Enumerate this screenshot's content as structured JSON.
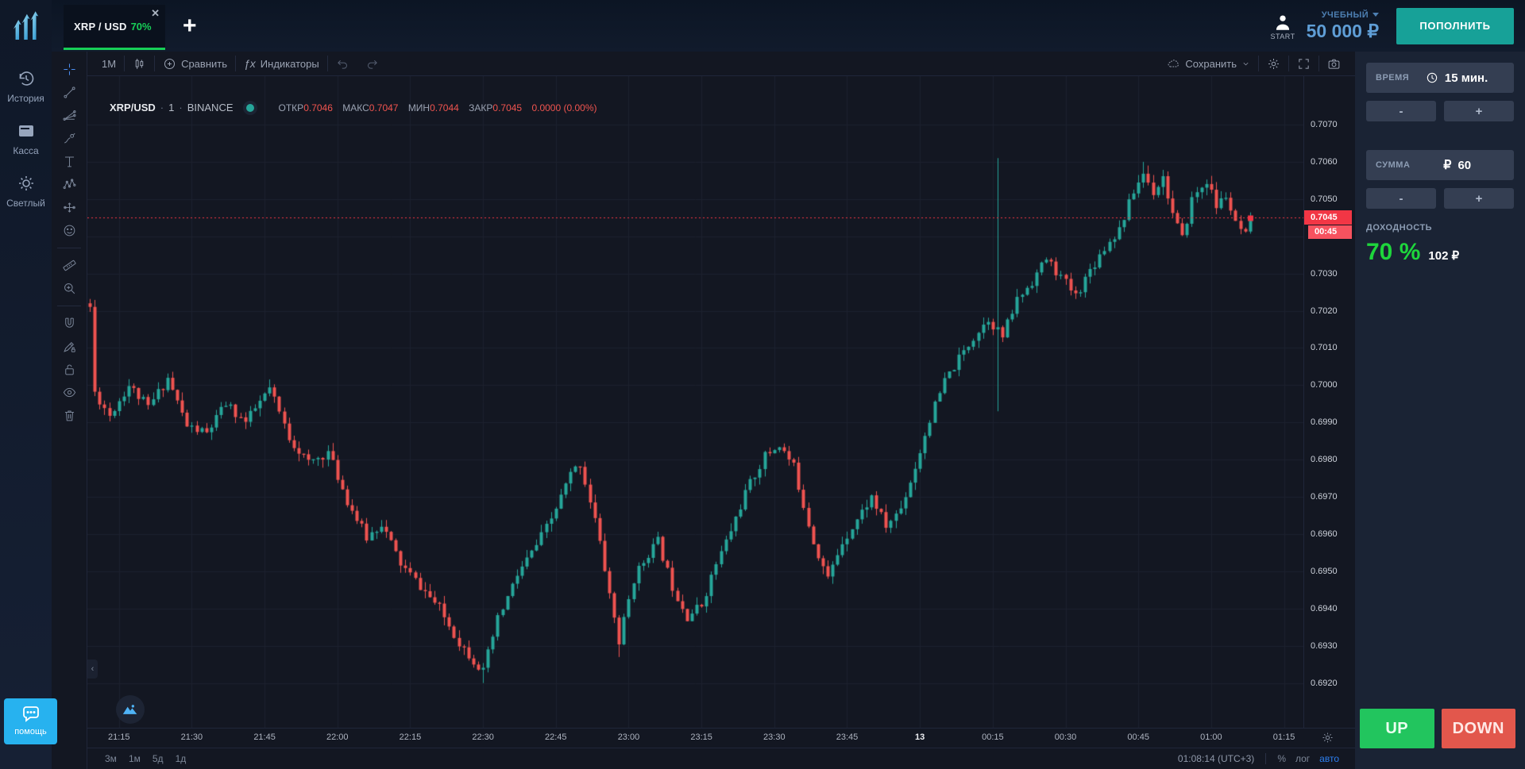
{
  "header": {
    "tab": {
      "symbol": "XRP / USD",
      "payout": "70%",
      "close_glyph": "✕"
    },
    "add_tab_glyph": "+",
    "account": {
      "avatar_label": "START",
      "account_type": "УЧЕБНЫЙ",
      "balance": "50 000 ₽"
    },
    "deposit_button": "ПОПОЛНИТЬ"
  },
  "sidebar": {
    "items": [
      {
        "label": "История"
      },
      {
        "label": "Касса"
      },
      {
        "label": "Светлый"
      }
    ],
    "help_label": "помощь"
  },
  "chart_toolbar": {
    "interval_label": "1M",
    "compare_label": "Сравнить",
    "indicators_label": "Индикаторы",
    "fx_glyph": "ƒx",
    "save_label": "Сохранить"
  },
  "legend": {
    "symbol": "XRP/USD",
    "sep": "·",
    "interval": "1",
    "exchange": "BINANCE",
    "open_label": "ОТКР",
    "open_value": "0.7046",
    "high_label": "МАКС",
    "high_value": "0.7047",
    "low_label": "МИН",
    "low_value": "0.7044",
    "close_label": "ЗАКР",
    "close_value": "0.7045",
    "change": "0.0000 (0.00%)"
  },
  "trade_panel": {
    "time_label": "ВРЕМЯ",
    "time_value": "15 мин.",
    "amount_label": "СУММА",
    "currency_glyph": "₽",
    "amount_value": "60",
    "minus_glyph": "-",
    "plus_glyph": "+",
    "payout_label": "ДОХОДНОСТЬ",
    "payout_percent": "70 %",
    "payout_amount": "102 ₽",
    "up_label": "UP",
    "down_label": "DOWN"
  },
  "footer": {
    "ranges": [
      "3м",
      "1м",
      "5д",
      "1д"
    ],
    "clock": "01:08:14 (UTC+3)",
    "percent_label": "%",
    "log_label": "лог",
    "auto_label": "авто"
  },
  "chart_ui": {
    "collapse_glyph": "‹"
  },
  "chart_data": {
    "type": "candlestick",
    "symbol": "XRP/USD",
    "exchange": "BINANCE",
    "interval_minutes": 1,
    "time_axis_note": "m = minutes after 21:00, session 12→13 Nov midnight crossover",
    "visible_time_range": [
      8.5,
      259
    ],
    "candles_time_span": [
      9,
      248
    ],
    "price_range_visible": [
      0.6908,
      0.7083
    ],
    "price_ticks": [
      0.707,
      0.706,
      0.705,
      0.704,
      0.703,
      0.702,
      0.701,
      0.7,
      0.699,
      0.698,
      0.697,
      0.696,
      0.695,
      0.694,
      0.693,
      0.692
    ],
    "time_ticks": [
      {
        "m": 15,
        "label": "21:15"
      },
      {
        "m": 30,
        "label": "21:30"
      },
      {
        "m": 45,
        "label": "21:45"
      },
      {
        "m": 60,
        "label": "22:00"
      },
      {
        "m": 75,
        "label": "22:15"
      },
      {
        "m": 90,
        "label": "22:30"
      },
      {
        "m": 105,
        "label": "22:45"
      },
      {
        "m": 120,
        "label": "23:00"
      },
      {
        "m": 135,
        "label": "23:15"
      },
      {
        "m": 150,
        "label": "23:30"
      },
      {
        "m": 165,
        "label": "23:45"
      },
      {
        "m": 180,
        "label": "13",
        "strong": true
      },
      {
        "m": 195,
        "label": "00:15"
      },
      {
        "m": 210,
        "label": "00:30"
      },
      {
        "m": 225,
        "label": "00:45"
      },
      {
        "m": 240,
        "label": "01:00"
      },
      {
        "m": 255,
        "label": "01:15"
      }
    ],
    "current_price": 0.7045,
    "current_price_label": "0.7045",
    "countdown_label": "00:45",
    "first_open": 0.7022,
    "ohlc_path_anchors": [
      [
        9,
        0.7021
      ],
      [
        10,
        0.6998
      ],
      [
        13,
        0.6992
      ],
      [
        17,
        0.7
      ],
      [
        21,
        0.6994
      ],
      [
        25,
        0.7002
      ],
      [
        29,
        0.6989
      ],
      [
        33,
        0.6987
      ],
      [
        37,
        0.6995
      ],
      [
        41,
        0.699
      ],
      [
        46,
        0.6999
      ],
      [
        50,
        0.6986
      ],
      [
        54,
        0.6979
      ],
      [
        58,
        0.6982
      ],
      [
        62,
        0.6969
      ],
      [
        66,
        0.6959
      ],
      [
        69,
        0.6963
      ],
      [
        73,
        0.6952
      ],
      [
        77,
        0.6946
      ],
      [
        81,
        0.694
      ],
      [
        85,
        0.6931
      ],
      [
        90,
        0.6923
      ],
      [
        93,
        0.6937
      ],
      [
        97,
        0.6949
      ],
      [
        101,
        0.6957
      ],
      [
        104,
        0.6964
      ],
      [
        108,
        0.6976
      ],
      [
        110,
        0.6979
      ],
      [
        113,
        0.6964
      ],
      [
        116,
        0.6944
      ],
      [
        118,
        0.6931
      ],
      [
        121,
        0.6948
      ],
      [
        124,
        0.6955
      ],
      [
        126,
        0.6958
      ],
      [
        129,
        0.6946
      ],
      [
        132,
        0.6938
      ],
      [
        135,
        0.6941
      ],
      [
        138,
        0.6952
      ],
      [
        141,
        0.6961
      ],
      [
        144,
        0.6971
      ],
      [
        148,
        0.6981
      ],
      [
        151,
        0.6984
      ],
      [
        154,
        0.6978
      ],
      [
        158,
        0.6958
      ],
      [
        161,
        0.6948
      ],
      [
        164,
        0.6958
      ],
      [
        167,
        0.6964
      ],
      [
        170,
        0.697
      ],
      [
        173,
        0.6962
      ],
      [
        176,
        0.6967
      ],
      [
        179,
        0.6978
      ],
      [
        182,
        0.6991
      ],
      [
        185,
        0.7001
      ],
      [
        188,
        0.7007
      ],
      [
        191,
        0.7013
      ],
      [
        194,
        0.7018
      ],
      [
        197,
        0.7013
      ],
      [
        200,
        0.7023
      ],
      [
        203,
        0.7028
      ],
      [
        206,
        0.7034
      ],
      [
        209,
        0.7029
      ],
      [
        212,
        0.7024
      ],
      [
        215,
        0.7031
      ],
      [
        218,
        0.7037
      ],
      [
        221,
        0.7042
      ],
      [
        224,
        0.7052
      ],
      [
        226,
        0.7057
      ],
      [
        228,
        0.7052
      ],
      [
        230,
        0.7056
      ],
      [
        232,
        0.7046
      ],
      [
        234,
        0.7039
      ],
      [
        236,
        0.705
      ],
      [
        239,
        0.7055
      ],
      [
        241,
        0.7048
      ],
      [
        243,
        0.7051
      ],
      [
        245,
        0.7043
      ],
      [
        247,
        0.704
      ],
      [
        248,
        0.7045
      ]
    ],
    "wick_spikes": [
      {
        "m": 9,
        "high": 0.7022
      },
      {
        "m": 90,
        "low": 0.692
      },
      {
        "m": 118,
        "low": 0.6927
      },
      {
        "m": 196,
        "high": 0.7061,
        "low": 0.6993
      },
      {
        "m": 226,
        "high": 0.706
      }
    ],
    "colors": {
      "up": "#26a69a",
      "down": "#ef5350",
      "grid": "#1c212e",
      "price_line": "#f23645",
      "badge": "#f23645",
      "background": "#131722"
    }
  }
}
